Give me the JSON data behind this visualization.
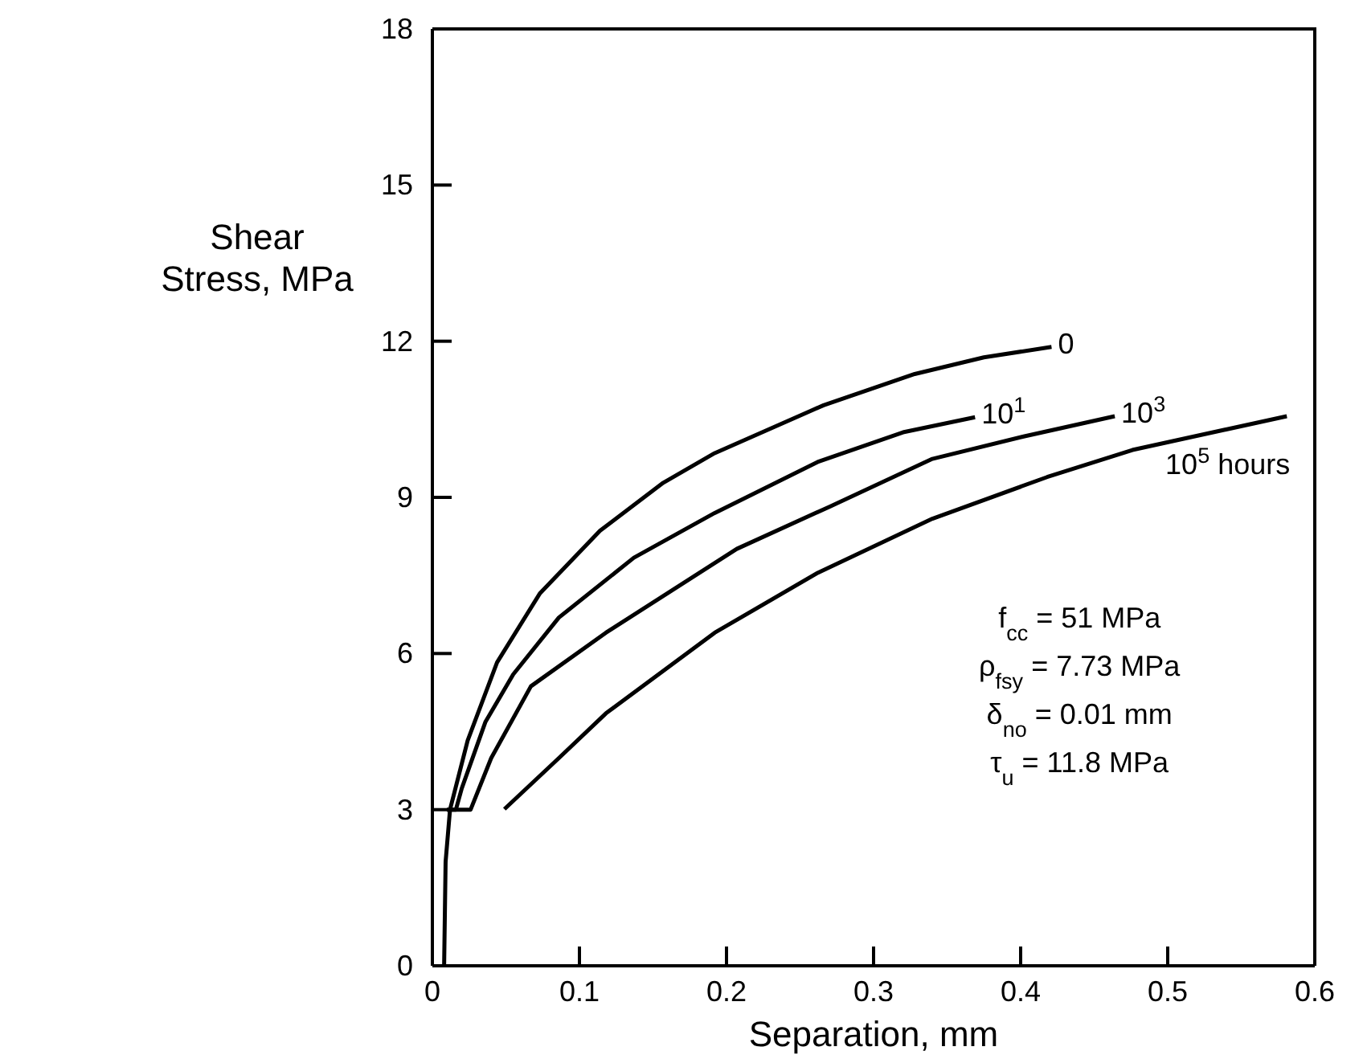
{
  "chart_data": {
    "type": "line",
    "xlabel": "Separation, mm",
    "ylabel": "Shear Stress, MPa",
    "xlim": [
      0,
      0.6
    ],
    "xticks": [
      0,
      0.1,
      0.2,
      0.3,
      0.4,
      0.5,
      0.6
    ],
    "ylim": [
      0,
      18
    ],
    "yticks": [
      0,
      3,
      6,
      9,
      12,
      15,
      18
    ],
    "marker": "none",
    "line_style": "solid",
    "series": [
      {
        "name": "0",
        "color": "#000000",
        "x": [
          0.008,
          0.009,
          0.012,
          0.024,
          0.044,
          0.073,
          0.114,
          0.157,
          0.192,
          0.266,
          0.328,
          0.375,
          0.421
        ],
        "values": [
          0,
          2,
          3,
          4.33,
          5.83,
          7.15,
          8.36,
          9.28,
          9.85,
          10.77,
          11.37,
          11.69,
          11.89
        ]
      },
      {
        "name": "10$^{1}$",
        "color": "#000000",
        "x": [
          0.01,
          0.016,
          0.02,
          0.036,
          0.055,
          0.086,
          0.137,
          0.192,
          0.262,
          0.32,
          0.369
        ],
        "values": [
          3,
          3,
          3.41,
          4.68,
          5.6,
          6.69,
          7.84,
          8.7,
          9.68,
          10.25,
          10.54
        ]
      },
      {
        "name": "10$^{3}$",
        "color": "#000000",
        "x": [
          0.01,
          0.026,
          0.04,
          0.067,
          0.118,
          0.207,
          0.27,
          0.34,
          0.402,
          0.464
        ],
        "values": [
          3,
          3,
          3.99,
          5.37,
          6.4,
          8.01,
          8.82,
          9.74,
          10.17,
          10.56
        ]
      },
      {
        "name": "10$^{5}$ hours",
        "color": "#000000",
        "x": [
          0.049,
          0.086,
          0.118,
          0.192,
          0.262,
          0.34,
          0.418,
          0.476,
          0.581
        ],
        "values": [
          3.01,
          3.99,
          4.85,
          6.4,
          7.55,
          8.59,
          9.39,
          9.91,
          10.56
        ]
      }
    ],
    "annotations": [
      "f$_{cc}$ = 51 MPa",
      "ρ$_{fsy}$ = 7.73 MPa",
      "δ$_{no}$ = 0.01 mm",
      "τ$_{u}$ = 11.8 MPa"
    ]
  }
}
